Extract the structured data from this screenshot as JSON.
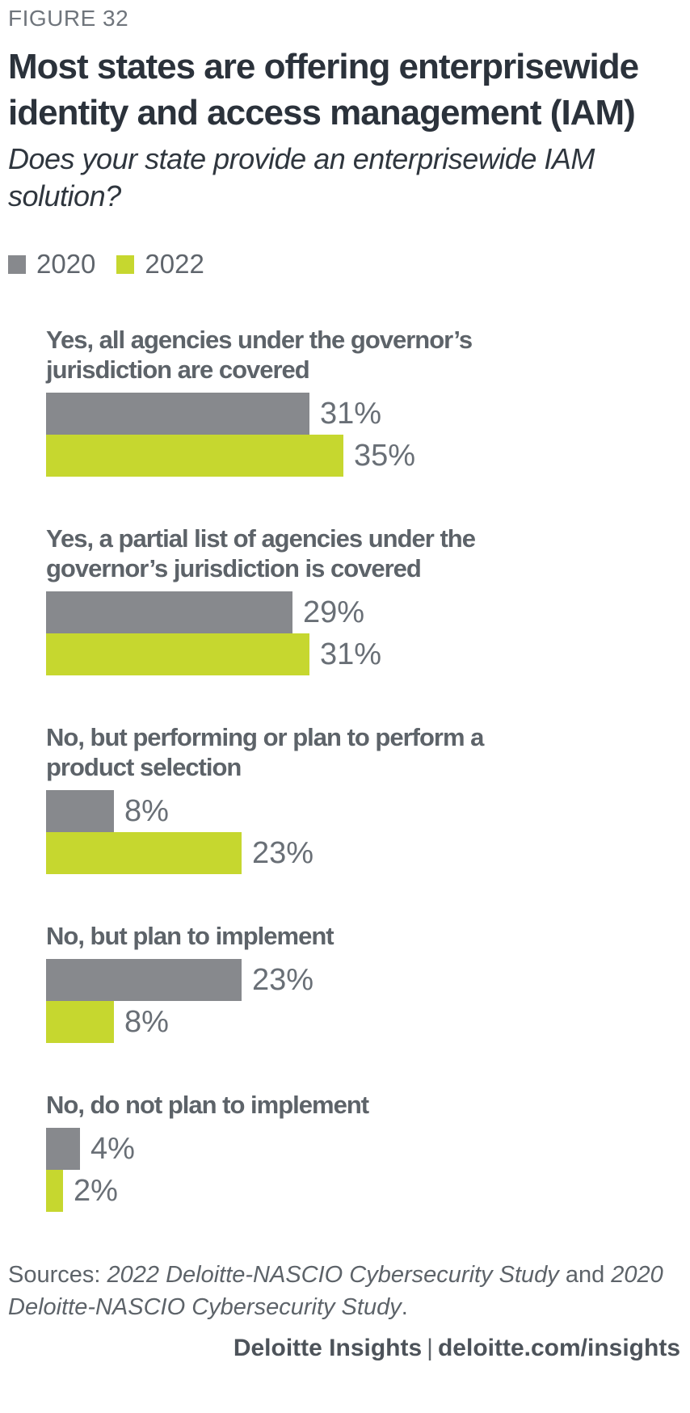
{
  "figure_label": "FIGURE 32",
  "title": "Most states are offering enterprisewide identity and access management (IAM)",
  "subtitle": "Does your state provide an enterprisewide IAM solution?",
  "colors": {
    "series_2020": "#87898d",
    "series_2022": "#c6d72f",
    "title_text": "#2b323b",
    "label_text": "#5d6369",
    "value_text": "#696f76"
  },
  "chart_data": {
    "type": "bar",
    "orientation": "horizontal",
    "title": "Most states are offering enterprisewide identity and access management (IAM)",
    "subtitle": "Does your state provide an enterprisewide IAM solution?",
    "categories": [
      "Yes, all agencies under the governor’s jurisdiction are covered",
      "Yes, a partial list of agencies under the governor’s jurisdiction is covered",
      "No, but performing or plan to perform a product selection",
      "No, but plan to implement",
      "No, do not plan to implement"
    ],
    "series": [
      {
        "name": "2020",
        "color": "#87898d",
        "values": [
          31,
          29,
          8,
          23,
          4
        ]
      },
      {
        "name": "2022",
        "color": "#c6d72f",
        "values": [
          35,
          31,
          23,
          8,
          2
        ]
      }
    ],
    "value_suffix": "%",
    "xlim": [
      0,
      40
    ],
    "grid": false,
    "legend_position": "top-left",
    "value_labels": "outside-end"
  },
  "sources": {
    "prefix": "Sources: ",
    "study_2022": "2022 Deloitte-NASCIO Cybersecurity Study",
    "connector": " and ",
    "study_2020": "2020 Deloitte-NASCIO Cybersecurity Study",
    "suffix": "."
  },
  "footer": {
    "brand": "Deloitte Insights",
    "separator": "|",
    "url": "deloitte.com/insights"
  }
}
